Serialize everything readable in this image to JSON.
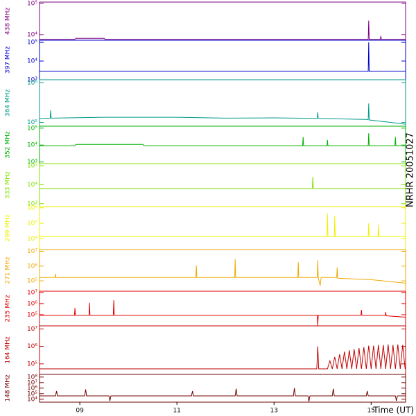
{
  "side_label": "NRHR 20051027",
  "chart_data": [
    {
      "type": "line",
      "ylabel": "438 MHz",
      "color": "#800080",
      "log_scale": true,
      "xlim": [
        8.17,
        15.71
      ],
      "ylim": [
        6600,
        110000
      ],
      "yticks": [
        {
          "value": 10000,
          "label": "10⁴"
        },
        {
          "value": 100000,
          "label": "10⁵"
        }
      ],
      "x": [
        8.17,
        8.9,
        8.92,
        9.5,
        9.52,
        14.94,
        14.95,
        14.96,
        15.19,
        15.2,
        15.21,
        15.71
      ],
      "values": [
        7000,
        7000,
        7600,
        7600,
        7000,
        7000,
        28000,
        7000,
        7000,
        9000,
        7000,
        7000
      ]
    },
    {
      "type": "line",
      "ylabel": "397 MHz",
      "color": "#0000cc",
      "log_scale": true,
      "xlim": [
        8.17,
        15.71
      ],
      "ylim": [
        1000,
        130000
      ],
      "yticks": [
        {
          "value": 1000,
          "label": "10³"
        },
        {
          "value": 10000,
          "label": "10⁴"
        },
        {
          "value": 100000,
          "label": "10⁵"
        }
      ],
      "x": [
        8.17,
        14.94,
        14.95,
        14.96,
        15.71
      ],
      "values": [
        2800,
        2800,
        100000,
        2800,
        2800
      ]
    },
    {
      "type": "line",
      "ylabel": "364 MHz",
      "color": "#009a8a",
      "log_scale": true,
      "xlim": [
        8.17,
        15.71
      ],
      "ylim": [
        80000,
        1200000
      ],
      "yticks": [
        {
          "value": 100000,
          "label": "10⁵"
        },
        {
          "value": 1000000,
          "label": "10⁶"
        }
      ],
      "x": [
        8.17,
        8.39,
        8.4,
        8.41,
        9.5,
        11,
        12,
        13,
        13.89,
        13.9,
        13.91,
        14.94,
        14.95,
        14.96,
        15.4,
        15.71
      ],
      "values": [
        125000,
        128000,
        200000,
        128000,
        135000,
        135000,
        128000,
        130000,
        126000,
        180000,
        126000,
        118000,
        300000,
        115000,
        100000,
        90000
      ]
    },
    {
      "type": "line",
      "ylabel": "352 MHz",
      "color": "#00b000",
      "log_scale": true,
      "xlim": [
        8.17,
        15.71
      ],
      "ylim": [
        800,
        130000
      ],
      "yticks": [
        {
          "value": 1000,
          "label": "10³"
        },
        {
          "value": 10000,
          "label": "10⁴"
        },
        {
          "value": 100000,
          "label": "10⁵"
        }
      ],
      "x": [
        8.17,
        8.9,
        8.92,
        10.3,
        10.32,
        13.59,
        13.6,
        13.61,
        14.09,
        14.1,
        14.11,
        14.94,
        14.95,
        14.96,
        15.49,
        15.5,
        15.51,
        15.71
      ],
      "values": [
        9000,
        9000,
        11000,
        11000,
        9000,
        9000,
        30000,
        9000,
        9000,
        20000,
        9000,
        9000,
        50000,
        9000,
        9000,
        30000,
        9000,
        9000
      ]
    },
    {
      "type": "line",
      "ylabel": "333 MHz",
      "color": "#80e000",
      "log_scale": true,
      "xlim": [
        8.17,
        15.71
      ],
      "ylim": [
        700,
        130000
      ],
      "yticks": [
        {
          "value": 1000,
          "label": "10³"
        },
        {
          "value": 10000,
          "label": "10⁴"
        },
        {
          "value": 100000,
          "label": "10⁵"
        }
      ],
      "x": [
        8.17,
        13.79,
        13.8,
        13.81,
        15.71
      ],
      "values": [
        6300,
        6300,
        26000,
        6300,
        6300
      ]
    },
    {
      "type": "line",
      "ylabel": "299 MHz",
      "color": "#f0f000",
      "log_scale": true,
      "xlim": [
        8.17,
        15.71
      ],
      "ylim": [
        2000,
        1200000
      ],
      "yticks": [
        {
          "value": 10000,
          "label": "10⁴"
        },
        {
          "value": 100000,
          "label": "10⁵"
        },
        {
          "value": 1000000,
          "label": "10⁶"
        }
      ],
      "x": [
        8.17,
        14.09,
        14.1,
        14.11,
        14.24,
        14.25,
        14.26,
        14.94,
        14.95,
        14.96,
        15.14,
        15.15,
        15.16,
        15.71
      ],
      "values": [
        14000,
        14000,
        420000,
        14000,
        14000,
        300000,
        14000,
        14000,
        100000,
        14000,
        14000,
        80000,
        14000,
        14000
      ]
    },
    {
      "type": "line",
      "ylabel": "271 MHz",
      "color": "#f0a800",
      "log_scale": true,
      "xlim": [
        8.17,
        15.71
      ],
      "ylim": [
        20000,
        13000000
      ],
      "yticks": [
        {
          "value": 100000,
          "label": "10⁵"
        },
        {
          "value": 1000000,
          "label": "10⁶"
        },
        {
          "value": 10000000,
          "label": "10⁷"
        }
      ],
      "x": [
        8.17,
        8.49,
        8.5,
        8.51,
        11.39,
        11.4,
        11.41,
        12.19,
        12.2,
        12.21,
        13.49,
        13.5,
        13.51,
        13.89,
        13.9,
        13.91,
        13.95,
        13.97,
        14.29,
        14.3,
        14.31,
        15,
        15.71
      ],
      "values": [
        170000,
        170000,
        300000,
        170000,
        170000,
        1100000,
        170000,
        170000,
        2900000,
        170000,
        170000,
        1800000,
        170000,
        170000,
        2500000,
        170000,
        47000,
        170000,
        170000,
        800000,
        150000,
        120000,
        70000
      ]
    },
    {
      "type": "line",
      "ylabel": "235 MHz",
      "color": "#e00000",
      "log_scale": true,
      "xlim": [
        8.17,
        15.71
      ],
      "ylim": [
        10000,
        13000000
      ],
      "yticks": [
        {
          "value": 100000,
          "label": "10⁵"
        },
        {
          "value": 1000000,
          "label": "10⁶"
        },
        {
          "value": 10000000,
          "label": "10⁷"
        }
      ],
      "x": [
        8.17,
        8.89,
        8.9,
        8.91,
        9.19,
        9.2,
        9.21,
        9.69,
        9.7,
        9.71,
        13.89,
        13.9,
        13.91,
        14.79,
        14.8,
        14.81,
        15.29,
        15.3,
        15.31,
        15.71
      ],
      "values": [
        90000,
        90000,
        400000,
        90000,
        90000,
        1200000,
        90000,
        90000,
        2000000,
        90000,
        90000,
        10000,
        90000,
        90000,
        270000,
        90000,
        90000,
        170000,
        80000,
        60000
      ]
    },
    {
      "type": "line",
      "ylabel": "164 MHz",
      "color": "#c00000",
      "log_scale": true,
      "xlim": [
        8.17,
        15.71
      ],
      "ylim": [
        25000,
        15000000
      ],
      "yticks": [
        {
          "value": 100000,
          "label": "10⁵"
        },
        {
          "value": 1000000,
          "label": "10⁶"
        },
        {
          "value": 10000000,
          "label": "10⁷"
        }
      ],
      "x": [
        8.17,
        13.88,
        13.9,
        13.92,
        14.1,
        14.15,
        14.2,
        14.25,
        14.3,
        14.35,
        14.4,
        14.45,
        14.5,
        14.55,
        14.6,
        14.65,
        14.7,
        14.75,
        14.8,
        14.85,
        14.9,
        14.95,
        15,
        15.05,
        15.1,
        15.15,
        15.2,
        15.25,
        15.3,
        15.35,
        15.4,
        15.45,
        15.5,
        15.55,
        15.6,
        15.65,
        15.7
      ],
      "values": [
        52000,
        52000,
        1000000,
        52000,
        52000,
        150000,
        52000,
        250000,
        52000,
        350000,
        52000,
        500000,
        52000,
        600000,
        52000,
        700000,
        52000,
        800000,
        52000,
        900000,
        52000,
        1100000,
        52000,
        1100000,
        52000,
        1200000,
        52000,
        1200000,
        52000,
        1300000,
        52000,
        1200000,
        52000,
        1300000,
        52000,
        1200000,
        52000
      ]
    },
    {
      "type": "line",
      "ylabel": "148 MHz",
      "color": "#700000",
      "log_scale": true,
      "xlim": [
        8.17,
        15.71
      ],
      "ylim": [
        3000,
        300000000
      ],
      "yticks": [
        {
          "value": 10000,
          "label": "10⁴"
        },
        {
          "value": 100000,
          "label": "10⁵"
        },
        {
          "value": 1000000,
          "label": "10⁶"
        },
        {
          "value": 10000000,
          "label": "10⁷"
        },
        {
          "value": 100000000,
          "label": "10⁸"
        }
      ],
      "xticks": [
        {
          "value": 9,
          "label": "09"
        },
        {
          "value": 11,
          "label": "11"
        },
        {
          "value": 13,
          "label": "13"
        },
        {
          "value": 15,
          "label": "15"
        }
      ],
      "xlabel": "Time (UT)",
      "x": [
        8.17,
        8.5,
        8.52,
        8.54,
        9.1,
        9.12,
        9.14,
        9.6,
        9.62,
        9.64,
        11.3,
        11.32,
        11.34,
        12.2,
        12.22,
        12.24,
        13.4,
        13.42,
        13.44,
        13.7,
        13.72,
        13.74,
        14.2,
        14.22,
        14.24,
        14.9,
        14.92,
        14.94,
        15.5,
        15.52,
        15.54,
        15.71
      ],
      "values": [
        40000,
        40000,
        300000,
        40000,
        40000,
        600000,
        40000,
        40000,
        5000,
        40000,
        40000,
        300000,
        40000,
        40000,
        800000,
        40000,
        40000,
        1000000,
        40000,
        40000,
        4000,
        40000,
        40000,
        800000,
        40000,
        40000,
        300000,
        40000,
        40000,
        5000,
        40000,
        40000
      ]
    }
  ]
}
